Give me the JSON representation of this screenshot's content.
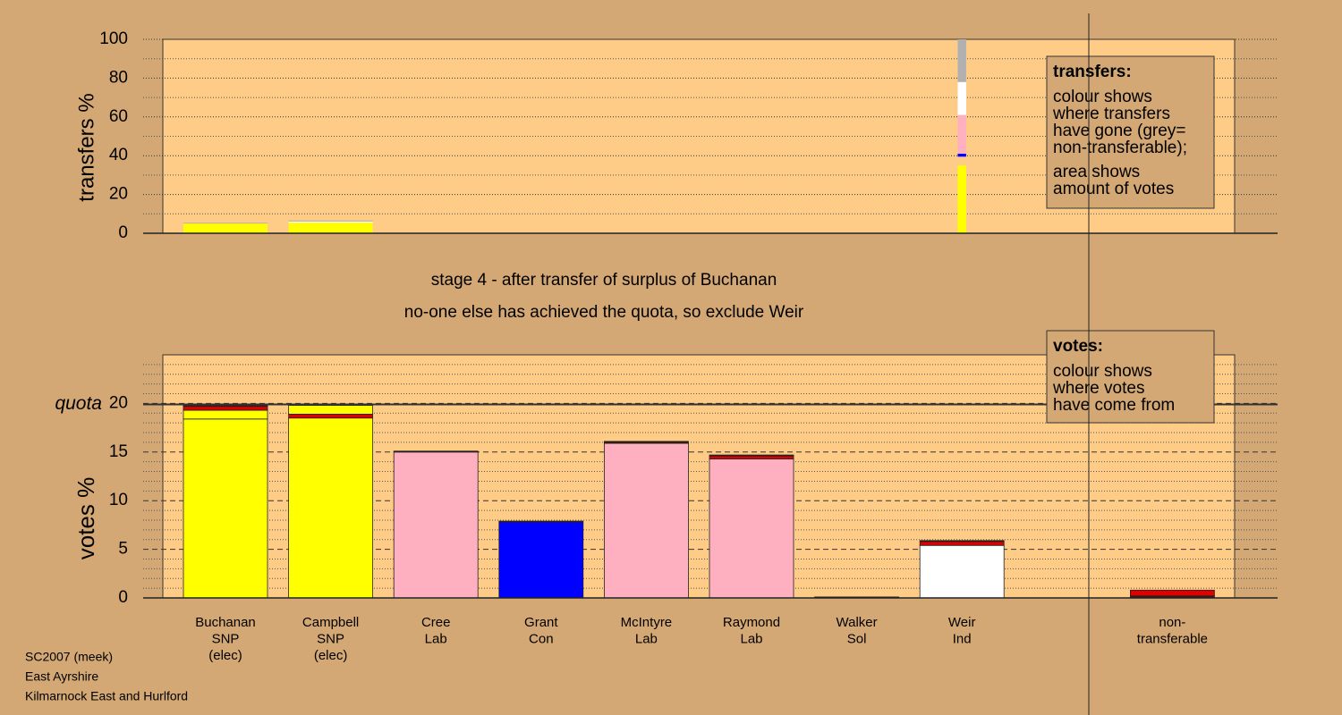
{
  "chart_data": [
    {
      "type": "bar",
      "ylabel": "transfers %",
      "ylim": [
        0,
        100
      ],
      "yticks": [
        0,
        20,
        40,
        60,
        80,
        100
      ],
      "minor_yticks": [
        10,
        30,
        50,
        70,
        90
      ],
      "bars": [
        {
          "width": 1,
          "segments": [
            {
              "value": 5,
              "color": "#ffff00"
            },
            {
              "value": 0.4,
              "color": "#b0b0b0"
            }
          ]
        },
        {
          "width": 1,
          "segments": [
            {
              "value": 5.5,
              "color": "#ffff00"
            },
            {
              "value": 0.6,
              "color": "#ffffff"
            },
            {
              "value": 0.5,
              "color": "#b0b0b0"
            }
          ]
        },
        {
          "segments": []
        },
        {
          "segments": []
        },
        {
          "segments": []
        },
        {
          "segments": []
        },
        {
          "segments": []
        },
        {
          "width": 0.1,
          "segments": [
            {
              "value": 35,
              "color": "#ffff00"
            },
            {
              "value": 4.5,
              "color": "#ffcc88"
            },
            {
              "value": 1.5,
              "color": "#0000ff"
            },
            {
              "value": 20,
              "color": "#ffb0c0"
            },
            {
              "value": 17,
              "color": "#ffffff"
            },
            {
              "value": 22,
              "color": "#b0b0b0"
            }
          ]
        },
        {
          "segments": []
        },
        {
          "segments": []
        }
      ],
      "legend": {
        "title": "transfers:",
        "lines": [
          "colour shows",
          "where transfers",
          "have gone (grey=",
          "non-transferable);"
        ],
        "lines2": [
          "area shows",
          "amount of votes"
        ]
      }
    },
    {
      "type": "bar",
      "ylabel": "votes %",
      "ylim": [
        0,
        25
      ],
      "yticks": [
        0,
        5,
        10,
        15,
        20
      ],
      "minor_yticks": [
        1,
        2,
        3,
        4,
        6,
        7,
        8,
        9,
        11,
        12,
        13,
        14,
        16,
        17,
        18,
        19,
        21,
        22,
        23,
        24
      ],
      "quota": 19.9,
      "quota_label": "quota",
      "categories": [
        [
          "Buchanan",
          "SNP",
          "(elec)"
        ],
        [
          "Campbell",
          "SNP",
          "(elec)"
        ],
        [
          "Cree",
          "Lab"
        ],
        [
          "Grant",
          "Con"
        ],
        [
          "McIntyre",
          "Lab"
        ],
        [
          "Raymond",
          "Lab"
        ],
        [
          "Walker",
          "Sol"
        ],
        [
          "Weir",
          "Ind"
        ],
        null,
        [
          "non-",
          "transferable"
        ]
      ],
      "bars": [
        {
          "segments": [
            {
              "value": 18.4,
              "color": "#ffff00"
            },
            {
              "value": 0.9,
              "color": "#ffff00"
            },
            {
              "value": 0.4,
              "color": "#dd0000"
            },
            {
              "value": 0.1,
              "color": "#3a1a0a"
            }
          ]
        },
        {
          "segments": [
            {
              "value": 18.5,
              "color": "#ffff00"
            },
            {
              "value": 0.4,
              "color": "#dd0000"
            },
            {
              "value": 0.9,
              "color": "#ffff00"
            }
          ]
        },
        {
          "segments": [
            {
              "value": 15,
              "color": "#ffb0c0"
            },
            {
              "value": 0.1,
              "color": "#3a1a0a"
            }
          ]
        },
        {
          "segments": [
            {
              "value": 7.8,
              "color": "#0000ff"
            },
            {
              "value": 0.1,
              "color": "#3a1a0a"
            }
          ]
        },
        {
          "segments": [
            {
              "value": 15.9,
              "color": "#ffb0c0"
            },
            {
              "value": 0.2,
              "color": "#3a1a0a"
            }
          ]
        },
        {
          "segments": [
            {
              "value": 14.3,
              "color": "#ffb0c0"
            },
            {
              "value": 0.3,
              "color": "#dd0000"
            },
            {
              "value": 0.1,
              "color": "#3a1a0a"
            }
          ]
        },
        {
          "segments": [
            {
              "value": 0.1,
              "color": "#3a1a0a"
            }
          ]
        },
        {
          "segments": [
            {
              "value": 5.4,
              "color": "#ffffff"
            },
            {
              "value": 0.4,
              "color": "#dd0000"
            },
            {
              "value": 0.1,
              "color": "#3a1a0a"
            }
          ]
        },
        {
          "segments": []
        },
        {
          "segments": [
            {
              "value": 0.2,
              "color": "#3a1a0a"
            },
            {
              "value": 0.6,
              "color": "#dd0000"
            }
          ]
        }
      ],
      "legend": {
        "title": "votes:",
        "lines": [
          "colour shows",
          "where votes",
          "have come from"
        ]
      }
    }
  ],
  "stage": [
    "stage 4 - after transfer of surplus of Buchanan",
    "no-one else has achieved the quota, so exclude Weir"
  ],
  "footer": [
    "SC2007 (meek)",
    "East Ayrshire",
    "Kilmarnock East and Hurlford"
  ]
}
